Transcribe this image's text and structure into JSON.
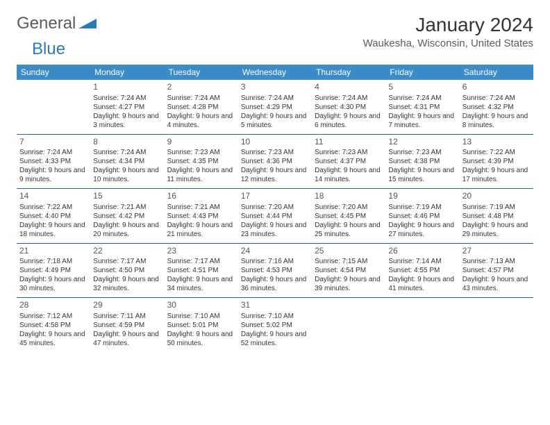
{
  "brand": {
    "part1": "General",
    "part2": "Blue"
  },
  "title": {
    "month": "January 2024",
    "location": "Waukesha, Wisconsin, United States"
  },
  "colors": {
    "header_bg": "#3b8bc9",
    "header_text": "#ffffff",
    "row_border": "#2a6a9a",
    "month_color": "#333333",
    "location_color": "#5a5a5a",
    "logo_blue": "#2a7ab8"
  },
  "weekdays": [
    "Sunday",
    "Monday",
    "Tuesday",
    "Wednesday",
    "Thursday",
    "Friday",
    "Saturday"
  ],
  "rows": [
    [
      {
        "n": "",
        "sr": "",
        "ss": "",
        "dl": ""
      },
      {
        "n": "1",
        "sr": "Sunrise: 7:24 AM",
        "ss": "Sunset: 4:27 PM",
        "dl": "Daylight: 9 hours and 3 minutes."
      },
      {
        "n": "2",
        "sr": "Sunrise: 7:24 AM",
        "ss": "Sunset: 4:28 PM",
        "dl": "Daylight: 9 hours and 4 minutes."
      },
      {
        "n": "3",
        "sr": "Sunrise: 7:24 AM",
        "ss": "Sunset: 4:29 PM",
        "dl": "Daylight: 9 hours and 5 minutes."
      },
      {
        "n": "4",
        "sr": "Sunrise: 7:24 AM",
        "ss": "Sunset: 4:30 PM",
        "dl": "Daylight: 9 hours and 6 minutes."
      },
      {
        "n": "5",
        "sr": "Sunrise: 7:24 AM",
        "ss": "Sunset: 4:31 PM",
        "dl": "Daylight: 9 hours and 7 minutes."
      },
      {
        "n": "6",
        "sr": "Sunrise: 7:24 AM",
        "ss": "Sunset: 4:32 PM",
        "dl": "Daylight: 9 hours and 8 minutes."
      }
    ],
    [
      {
        "n": "7",
        "sr": "Sunrise: 7:24 AM",
        "ss": "Sunset: 4:33 PM",
        "dl": "Daylight: 9 hours and 9 minutes."
      },
      {
        "n": "8",
        "sr": "Sunrise: 7:24 AM",
        "ss": "Sunset: 4:34 PM",
        "dl": "Daylight: 9 hours and 10 minutes."
      },
      {
        "n": "9",
        "sr": "Sunrise: 7:23 AM",
        "ss": "Sunset: 4:35 PM",
        "dl": "Daylight: 9 hours and 11 minutes."
      },
      {
        "n": "10",
        "sr": "Sunrise: 7:23 AM",
        "ss": "Sunset: 4:36 PM",
        "dl": "Daylight: 9 hours and 12 minutes."
      },
      {
        "n": "11",
        "sr": "Sunrise: 7:23 AM",
        "ss": "Sunset: 4:37 PM",
        "dl": "Daylight: 9 hours and 14 minutes."
      },
      {
        "n": "12",
        "sr": "Sunrise: 7:23 AM",
        "ss": "Sunset: 4:38 PM",
        "dl": "Daylight: 9 hours and 15 minutes."
      },
      {
        "n": "13",
        "sr": "Sunrise: 7:22 AM",
        "ss": "Sunset: 4:39 PM",
        "dl": "Daylight: 9 hours and 17 minutes."
      }
    ],
    [
      {
        "n": "14",
        "sr": "Sunrise: 7:22 AM",
        "ss": "Sunset: 4:40 PM",
        "dl": "Daylight: 9 hours and 18 minutes."
      },
      {
        "n": "15",
        "sr": "Sunrise: 7:21 AM",
        "ss": "Sunset: 4:42 PM",
        "dl": "Daylight: 9 hours and 20 minutes."
      },
      {
        "n": "16",
        "sr": "Sunrise: 7:21 AM",
        "ss": "Sunset: 4:43 PM",
        "dl": "Daylight: 9 hours and 21 minutes."
      },
      {
        "n": "17",
        "sr": "Sunrise: 7:20 AM",
        "ss": "Sunset: 4:44 PM",
        "dl": "Daylight: 9 hours and 23 minutes."
      },
      {
        "n": "18",
        "sr": "Sunrise: 7:20 AM",
        "ss": "Sunset: 4:45 PM",
        "dl": "Daylight: 9 hours and 25 minutes."
      },
      {
        "n": "19",
        "sr": "Sunrise: 7:19 AM",
        "ss": "Sunset: 4:46 PM",
        "dl": "Daylight: 9 hours and 27 minutes."
      },
      {
        "n": "20",
        "sr": "Sunrise: 7:19 AM",
        "ss": "Sunset: 4:48 PM",
        "dl": "Daylight: 9 hours and 29 minutes."
      }
    ],
    [
      {
        "n": "21",
        "sr": "Sunrise: 7:18 AM",
        "ss": "Sunset: 4:49 PM",
        "dl": "Daylight: 9 hours and 30 minutes."
      },
      {
        "n": "22",
        "sr": "Sunrise: 7:17 AM",
        "ss": "Sunset: 4:50 PM",
        "dl": "Daylight: 9 hours and 32 minutes."
      },
      {
        "n": "23",
        "sr": "Sunrise: 7:17 AM",
        "ss": "Sunset: 4:51 PM",
        "dl": "Daylight: 9 hours and 34 minutes."
      },
      {
        "n": "24",
        "sr": "Sunrise: 7:16 AM",
        "ss": "Sunset: 4:53 PM",
        "dl": "Daylight: 9 hours and 36 minutes."
      },
      {
        "n": "25",
        "sr": "Sunrise: 7:15 AM",
        "ss": "Sunset: 4:54 PM",
        "dl": "Daylight: 9 hours and 39 minutes."
      },
      {
        "n": "26",
        "sr": "Sunrise: 7:14 AM",
        "ss": "Sunset: 4:55 PM",
        "dl": "Daylight: 9 hours and 41 minutes."
      },
      {
        "n": "27",
        "sr": "Sunrise: 7:13 AM",
        "ss": "Sunset: 4:57 PM",
        "dl": "Daylight: 9 hours and 43 minutes."
      }
    ],
    [
      {
        "n": "28",
        "sr": "Sunrise: 7:12 AM",
        "ss": "Sunset: 4:58 PM",
        "dl": "Daylight: 9 hours and 45 minutes."
      },
      {
        "n": "29",
        "sr": "Sunrise: 7:11 AM",
        "ss": "Sunset: 4:59 PM",
        "dl": "Daylight: 9 hours and 47 minutes."
      },
      {
        "n": "30",
        "sr": "Sunrise: 7:10 AM",
        "ss": "Sunset: 5:01 PM",
        "dl": "Daylight: 9 hours and 50 minutes."
      },
      {
        "n": "31",
        "sr": "Sunrise: 7:10 AM",
        "ss": "Sunset: 5:02 PM",
        "dl": "Daylight: 9 hours and 52 minutes."
      },
      {
        "n": "",
        "sr": "",
        "ss": "",
        "dl": ""
      },
      {
        "n": "",
        "sr": "",
        "ss": "",
        "dl": ""
      },
      {
        "n": "",
        "sr": "",
        "ss": "",
        "dl": ""
      }
    ]
  ]
}
